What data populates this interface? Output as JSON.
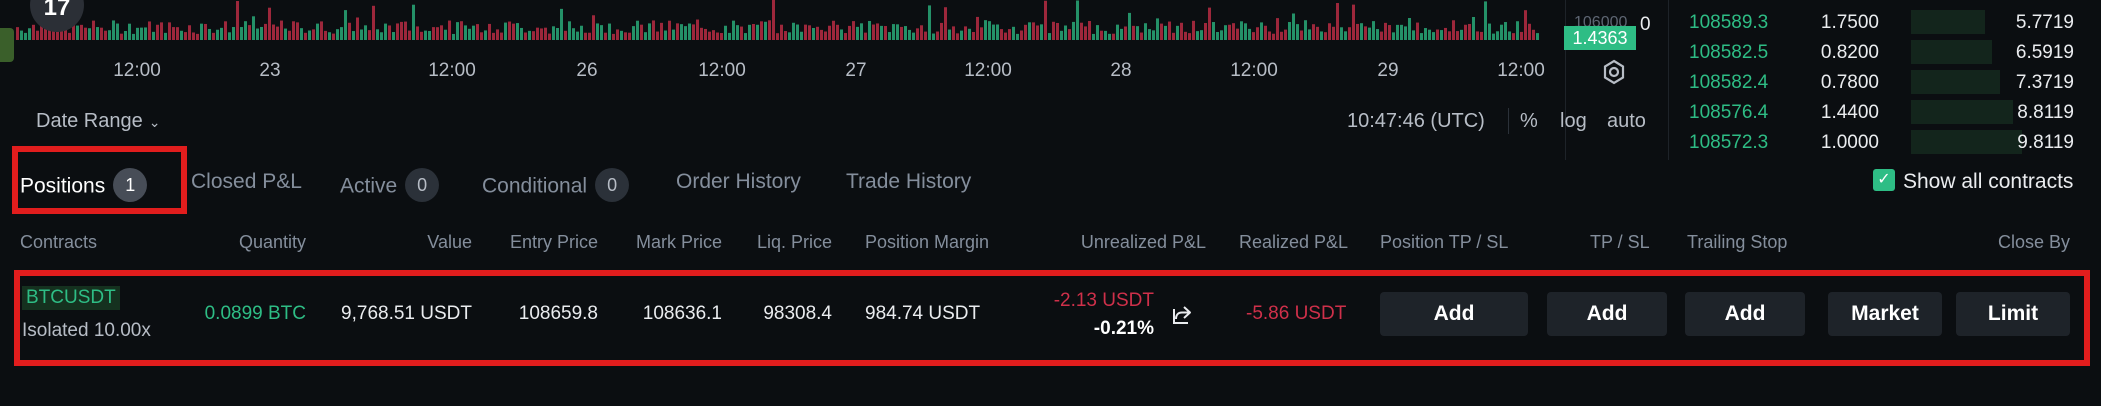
{
  "chart": {
    "x_ticks": [
      "12:00",
      "23",
      "12:00",
      "26",
      "12:00",
      "27",
      "12:00",
      "28",
      "12:00",
      "29",
      "12:00"
    ],
    "axis_price_dim": "106000",
    "price_badge": "1.4363",
    "axis_zero": "0",
    "volume_colors": {
      "up": "#2ebd85",
      "down": "#cf304a"
    },
    "logo_text": "17",
    "date_range_label": "Date Range",
    "clock": "10:47:46 (UTC)",
    "toggles": {
      "percent": "%",
      "log": "log",
      "auto": "auto"
    }
  },
  "orderbook": [
    {
      "price": "108589.3",
      "size": "1.7500",
      "sum": "5.7719",
      "depth": 0.25
    },
    {
      "price": "108582.5",
      "size": "0.8200",
      "sum": "6.5919",
      "depth": 0.28
    },
    {
      "price": "108582.4",
      "size": "0.7800",
      "sum": "7.3719",
      "depth": 0.32
    },
    {
      "price": "108576.4",
      "size": "1.4400",
      "sum": "8.8119",
      "depth": 0.38
    },
    {
      "price": "108572.3",
      "size": "1.0000",
      "sum": "9.8119",
      "depth": 0.42
    }
  ],
  "tabs": [
    {
      "label": "Positions",
      "badge": "1",
      "active": true
    },
    {
      "label": "Closed P&L"
    },
    {
      "label": "Active",
      "badge": "0"
    },
    {
      "label": "Conditional",
      "badge": "0"
    },
    {
      "label": "Order History"
    },
    {
      "label": "Trade History"
    }
  ],
  "show_all_contracts": {
    "label": "Show all contracts",
    "checked": true
  },
  "table": {
    "headers": {
      "contracts": "Contracts",
      "quantity": "Quantity",
      "value": "Value",
      "entry_price": "Entry Price",
      "mark_price": "Mark Price",
      "liq_price": "Liq. Price",
      "position_margin": "Position Margin",
      "unrealized_pnl": "Unrealized P&L",
      "realized_pnl": "Realized P&L",
      "position_tpsl": "Position TP / SL",
      "tpsl": "TP / SL",
      "trailing_stop": "Trailing Stop",
      "close_by": "Close By"
    },
    "row": {
      "symbol": "BTCUSDT",
      "margin_mode": "Isolated 10.00x",
      "quantity": "0.0899 BTC",
      "value": "9,768.51 USDT",
      "entry_price": "108659.8",
      "mark_price": "108636.1",
      "liq_price": "98308.4",
      "position_margin": "984.74 USDT",
      "unrealized_pnl": "-2.13 USDT",
      "unrealized_pnl_pct": "-0.21%",
      "realized_pnl": "-5.86 USDT",
      "position_tpsl_btn": "Add",
      "tpsl_btn": "Add",
      "trailing_stop_btn": "Add",
      "close_market_btn": "Market",
      "close_limit_btn": "Limit"
    }
  }
}
